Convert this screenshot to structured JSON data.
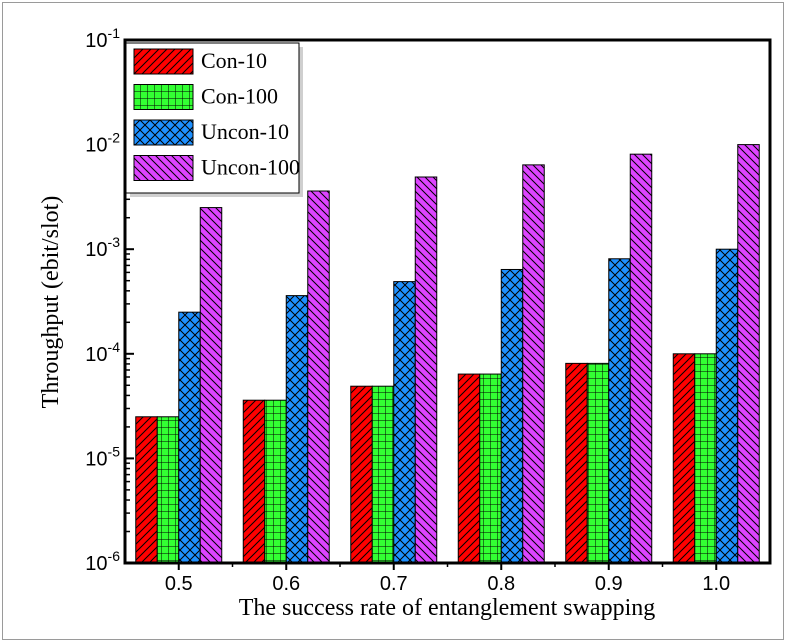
{
  "chart_data": {
    "type": "bar",
    "xlabel": "The success rate of entanglement swapping",
    "ylabel": "Throughput (ebit/slot)",
    "yscale": "log",
    "ylim": [
      1e-06,
      0.1
    ],
    "y_ticks": [
      {
        "value": 1e-06,
        "base": "10",
        "exp": "-6"
      },
      {
        "value": 1e-05,
        "base": "10",
        "exp": "-5"
      },
      {
        "value": 0.0001,
        "base": "10",
        "exp": "-4"
      },
      {
        "value": 0.001,
        "base": "10",
        "exp": "-3"
      },
      {
        "value": 0.01,
        "base": "10",
        "exp": "-2"
      },
      {
        "value": 0.1,
        "base": "10",
        "exp": "-1"
      }
    ],
    "categories": [
      "0.5",
      "0.6",
      "0.7",
      "0.8",
      "0.9",
      "1.0"
    ],
    "legend_position": "top-left",
    "grid": false,
    "series": [
      {
        "name": "Con-10",
        "color": "#ff0000",
        "pattern": "diagonal-up",
        "values": [
          2.5e-05,
          3.6e-05,
          4.9e-05,
          6.4e-05,
          8.1e-05,
          0.0001
        ]
      },
      {
        "name": "Con-100",
        "color": "#33ff33",
        "pattern": "grid",
        "values": [
          2.5e-05,
          3.6e-05,
          4.9e-05,
          6.4e-05,
          8.1e-05,
          0.0001
        ]
      },
      {
        "name": "Uncon-10",
        "color": "#1e90ff",
        "pattern": "cross-hatch",
        "values": [
          0.00025,
          0.00036,
          0.00049,
          0.00064,
          0.00081,
          0.001
        ]
      },
      {
        "name": "Uncon-100",
        "color": "#dd44ff",
        "pattern": "diagonal-down",
        "values": [
          0.0025,
          0.0036,
          0.0049,
          0.0064,
          0.0081,
          0.01
        ]
      }
    ]
  }
}
